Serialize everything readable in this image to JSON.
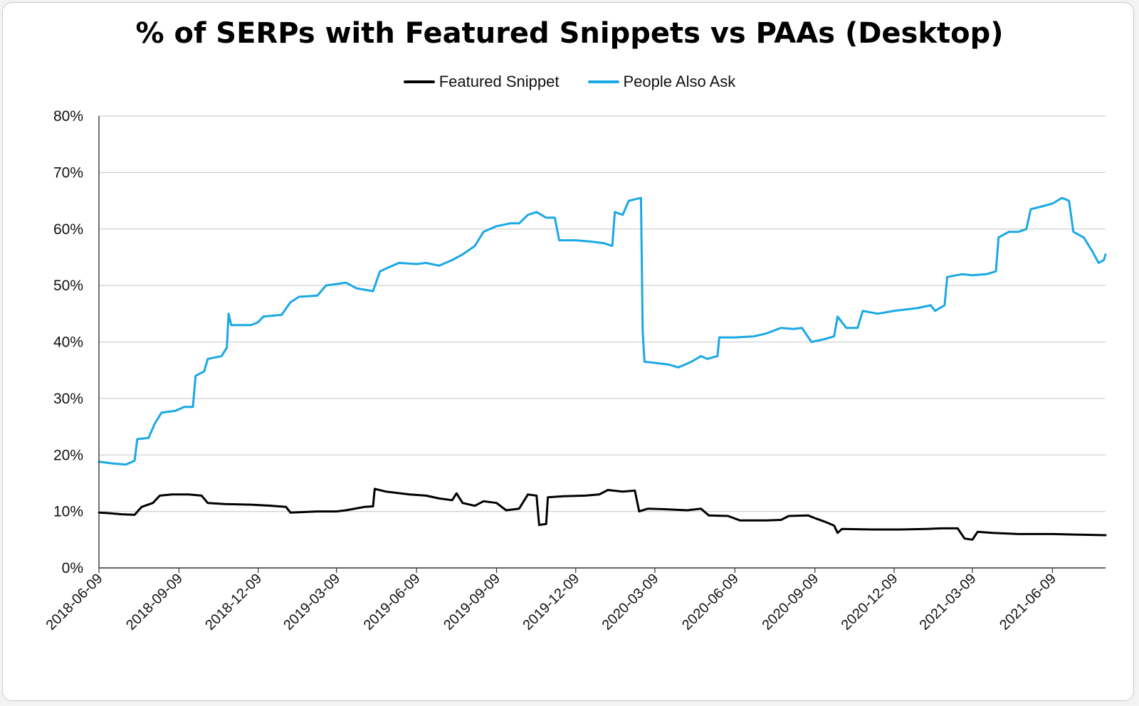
{
  "chart_data": {
    "type": "line",
    "title": "% of SERPs with Featured Snippets vs PAAs (Desktop)",
    "xlabel": "",
    "ylabel": "",
    "xlim": [
      "2018-06-09",
      "2021-08-09"
    ],
    "ylim": [
      0,
      80
    ],
    "y_ticks": [
      "0%",
      "10%",
      "20%",
      "30%",
      "40%",
      "50%",
      "60%",
      "70%",
      "80%"
    ],
    "x_ticks": [
      "2018-06-09",
      "2018-09-09",
      "2018-12-09",
      "2019-03-09",
      "2019-06-09",
      "2019-09-09",
      "2019-12-09",
      "2020-03-09",
      "2020-06-09",
      "2020-09-09",
      "2020-12-09",
      "2021-03-09",
      "2021-06-09"
    ],
    "grid": true,
    "legend_position": "top-center",
    "series": [
      {
        "name": "Featured Snippet",
        "color": "#000000",
        "points": [
          [
            "2018-06-09",
            9.8
          ],
          [
            "2018-06-20",
            9.7
          ],
          [
            "2018-07-05",
            9.5
          ],
          [
            "2018-07-20",
            9.4
          ],
          [
            "2018-07-28",
            10.8
          ],
          [
            "2018-08-10",
            11.5
          ],
          [
            "2018-08-18",
            12.8
          ],
          [
            "2018-09-01",
            13.0
          ],
          [
            "2018-09-20",
            13.0
          ],
          [
            "2018-10-05",
            12.8
          ],
          [
            "2018-10-12",
            11.5
          ],
          [
            "2018-11-01",
            11.3
          ],
          [
            "2018-12-01",
            11.2
          ],
          [
            "2018-12-25",
            11.0
          ],
          [
            "2019-01-10",
            10.8
          ],
          [
            "2019-01-15",
            9.8
          ],
          [
            "2019-02-15",
            10.0
          ],
          [
            "2019-03-09",
            10.0
          ],
          [
            "2019-03-20",
            10.2
          ],
          [
            "2019-04-10",
            10.8
          ],
          [
            "2019-04-20",
            10.9
          ],
          [
            "2019-04-22",
            14.0
          ],
          [
            "2019-05-05",
            13.5
          ],
          [
            "2019-06-01",
            13.0
          ],
          [
            "2019-06-20",
            12.8
          ],
          [
            "2019-07-05",
            12.3
          ],
          [
            "2019-07-20",
            12.0
          ],
          [
            "2019-07-25",
            13.2
          ],
          [
            "2019-08-01",
            11.5
          ],
          [
            "2019-08-15",
            11.0
          ],
          [
            "2019-08-25",
            11.8
          ],
          [
            "2019-09-09",
            11.5
          ],
          [
            "2019-09-20",
            10.2
          ],
          [
            "2019-10-05",
            10.5
          ],
          [
            "2019-10-15",
            13.0
          ],
          [
            "2019-10-25",
            12.8
          ],
          [
            "2019-10-28",
            7.6
          ],
          [
            "2019-11-05",
            7.8
          ],
          [
            "2019-11-07",
            12.5
          ],
          [
            "2019-11-25",
            12.7
          ],
          [
            "2019-12-20",
            12.8
          ],
          [
            "2020-01-05",
            13.0
          ],
          [
            "2020-01-15",
            13.8
          ],
          [
            "2020-02-01",
            13.5
          ],
          [
            "2020-02-15",
            13.7
          ],
          [
            "2020-02-20",
            10.0
          ],
          [
            "2020-03-01",
            10.5
          ],
          [
            "2020-03-20",
            10.4
          ],
          [
            "2020-04-15",
            10.2
          ],
          [
            "2020-05-01",
            10.5
          ],
          [
            "2020-05-10",
            9.3
          ],
          [
            "2020-06-01",
            9.2
          ],
          [
            "2020-06-15",
            8.4
          ],
          [
            "2020-07-15",
            8.4
          ],
          [
            "2020-08-01",
            8.5
          ],
          [
            "2020-08-10",
            9.2
          ],
          [
            "2020-09-01",
            9.3
          ],
          [
            "2020-09-09",
            8.8
          ],
          [
            "2020-09-20",
            8.2
          ],
          [
            "2020-10-01",
            7.5
          ],
          [
            "2020-10-05",
            6.2
          ],
          [
            "2020-10-10",
            6.9
          ],
          [
            "2020-11-15",
            6.8
          ],
          [
            "2020-12-15",
            6.8
          ],
          [
            "2021-01-15",
            6.9
          ],
          [
            "2021-02-01",
            7.0
          ],
          [
            "2021-02-20",
            7.0
          ],
          [
            "2021-02-28",
            5.2
          ],
          [
            "2021-03-09",
            5.0
          ],
          [
            "2021-03-15",
            6.4
          ],
          [
            "2021-04-01",
            6.2
          ],
          [
            "2021-05-01",
            6.0
          ],
          [
            "2021-06-09",
            6.0
          ],
          [
            "2021-07-09",
            5.9
          ],
          [
            "2021-08-09",
            5.8
          ]
        ]
      },
      {
        "name": "People Also Ask",
        "color": "#1aa8e6",
        "points": [
          [
            "2018-06-09",
            18.8
          ],
          [
            "2018-06-25",
            18.5
          ],
          [
            "2018-07-10",
            18.3
          ],
          [
            "2018-07-20",
            19.0
          ],
          [
            "2018-07-23",
            22.8
          ],
          [
            "2018-08-05",
            23.0
          ],
          [
            "2018-08-12",
            25.5
          ],
          [
            "2018-08-20",
            27.5
          ],
          [
            "2018-09-05",
            27.8
          ],
          [
            "2018-09-15",
            28.5
          ],
          [
            "2018-09-25",
            28.5
          ],
          [
            "2018-09-28",
            34.0
          ],
          [
            "2018-10-08",
            34.8
          ],
          [
            "2018-10-12",
            37.0
          ],
          [
            "2018-10-28",
            37.5
          ],
          [
            "2018-11-03",
            39.0
          ],
          [
            "2018-11-05",
            45.0
          ],
          [
            "2018-11-08",
            43.0
          ],
          [
            "2018-12-01",
            43.0
          ],
          [
            "2018-12-09",
            43.5
          ],
          [
            "2018-12-15",
            44.5
          ],
          [
            "2019-01-05",
            44.8
          ],
          [
            "2019-01-15",
            47.0
          ],
          [
            "2019-01-25",
            48.0
          ],
          [
            "2019-02-15",
            48.2
          ],
          [
            "2019-02-25",
            50.0
          ],
          [
            "2019-03-20",
            50.5
          ],
          [
            "2019-04-01",
            49.5
          ],
          [
            "2019-04-20",
            49.0
          ],
          [
            "2019-04-28",
            52.5
          ],
          [
            "2019-05-05",
            53.0
          ],
          [
            "2019-05-20",
            54.0
          ],
          [
            "2019-06-09",
            53.8
          ],
          [
            "2019-06-20",
            54.0
          ],
          [
            "2019-07-05",
            53.5
          ],
          [
            "2019-07-20",
            54.5
          ],
          [
            "2019-08-01",
            55.5
          ],
          [
            "2019-08-15",
            57.0
          ],
          [
            "2019-08-25",
            59.5
          ],
          [
            "2019-09-09",
            60.5
          ],
          [
            "2019-09-25",
            61.0
          ],
          [
            "2019-10-05",
            61.0
          ],
          [
            "2019-10-15",
            62.5
          ],
          [
            "2019-10-25",
            63.0
          ],
          [
            "2019-11-05",
            62.0
          ],
          [
            "2019-11-15",
            62.0
          ],
          [
            "2019-11-20",
            58.0
          ],
          [
            "2019-12-09",
            58.0
          ],
          [
            "2019-12-25",
            57.8
          ],
          [
            "2020-01-10",
            57.5
          ],
          [
            "2020-01-20",
            57.0
          ],
          [
            "2020-01-23",
            63.0
          ],
          [
            "2020-02-01",
            62.5
          ],
          [
            "2020-02-08",
            65.0
          ],
          [
            "2020-02-22",
            65.5
          ],
          [
            "2020-02-24",
            42.0
          ],
          [
            "2020-02-26",
            36.5
          ],
          [
            "2020-03-09",
            36.3
          ],
          [
            "2020-03-25",
            36.0
          ],
          [
            "2020-04-05",
            35.5
          ],
          [
            "2020-04-20",
            36.5
          ],
          [
            "2020-05-01",
            37.5
          ],
          [
            "2020-05-08",
            37.0
          ],
          [
            "2020-05-20",
            37.5
          ],
          [
            "2020-05-22",
            40.8
          ],
          [
            "2020-06-09",
            40.8
          ],
          [
            "2020-07-01",
            41.0
          ],
          [
            "2020-07-15",
            41.5
          ],
          [
            "2020-08-01",
            42.5
          ],
          [
            "2020-08-15",
            42.3
          ],
          [
            "2020-08-25",
            42.5
          ],
          [
            "2020-09-05",
            40.0
          ],
          [
            "2020-09-20",
            40.5
          ],
          [
            "2020-10-01",
            41.0
          ],
          [
            "2020-10-05",
            44.5
          ],
          [
            "2020-10-15",
            42.5
          ],
          [
            "2020-10-28",
            42.5
          ],
          [
            "2020-11-03",
            45.5
          ],
          [
            "2020-11-20",
            45.0
          ],
          [
            "2020-12-09",
            45.5
          ],
          [
            "2021-01-05",
            46.0
          ],
          [
            "2021-01-20",
            46.5
          ],
          [
            "2021-01-25",
            45.5
          ],
          [
            "2021-02-05",
            46.5
          ],
          [
            "2021-02-08",
            51.5
          ],
          [
            "2021-02-25",
            52.0
          ],
          [
            "2021-03-09",
            51.8
          ],
          [
            "2021-03-25",
            52.0
          ],
          [
            "2021-04-05",
            52.5
          ],
          [
            "2021-04-08",
            58.5
          ],
          [
            "2021-04-20",
            59.5
          ],
          [
            "2021-05-01",
            59.5
          ],
          [
            "2021-05-10",
            60.0
          ],
          [
            "2021-05-15",
            63.5
          ],
          [
            "2021-05-28",
            64.0
          ],
          [
            "2021-06-09",
            64.5
          ],
          [
            "2021-06-20",
            65.5
          ],
          [
            "2021-06-28",
            65.0
          ],
          [
            "2021-07-03",
            59.5
          ],
          [
            "2021-07-15",
            58.5
          ],
          [
            "2021-07-25",
            56.0
          ],
          [
            "2021-08-01",
            54.0
          ],
          [
            "2021-08-07",
            54.5
          ],
          [
            "2021-08-09",
            55.5
          ]
        ]
      }
    ]
  }
}
